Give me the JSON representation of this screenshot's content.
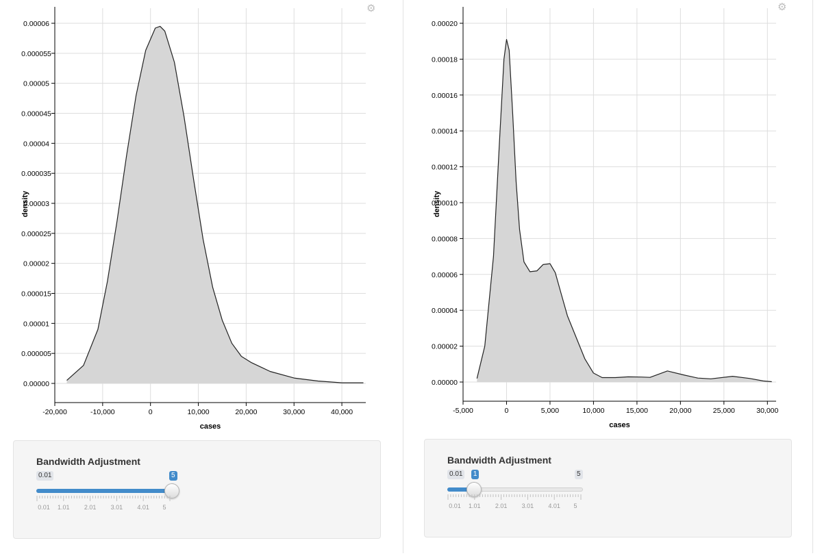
{
  "chart_data": [
    {
      "type": "area",
      "xlabel": "cases",
      "ylabel": "density",
      "xlim": [
        -20000,
        45000
      ],
      "ylim": [
        0,
        6e-05
      ],
      "x_ticks": [
        -20000,
        -10000,
        0,
        10000,
        20000,
        30000,
        40000
      ],
      "x_tick_labels": [
        "-20,000",
        "-10,000",
        "0",
        "10,000",
        "20,000",
        "30,000",
        "40,000"
      ],
      "y_ticks": [
        0,
        5e-06,
        1e-05,
        1.5e-05,
        2e-05,
        2.5e-05,
        3e-05,
        3.5e-05,
        4e-05,
        4.5e-05,
        5e-05,
        5.5e-05,
        6e-05
      ],
      "y_tick_labels": [
        "0.00000",
        "0.000005",
        "0.00001",
        "0.000015",
        "0.00002",
        "0.000025",
        "0.00003",
        "0.000035",
        "0.00004",
        "0.000045",
        "0.00005",
        "0.000055",
        "0.00006"
      ],
      "grid": true,
      "fill_color": "#d6d6d6",
      "line_color": "#222222",
      "x": [
        -17500,
        -14000,
        -11000,
        -9000,
        -7000,
        -5000,
        -3000,
        -1000,
        1000,
        2000,
        3000,
        5000,
        7000,
        9000,
        11000,
        13000,
        15000,
        17000,
        19000,
        21000,
        25000,
        30000,
        35000,
        40000,
        44500
      ],
      "y": [
        5e-07,
        3e-06,
        9e-06,
        1.7e-05,
        2.7e-05,
        3.8e-05,
        4.8e-05,
        5.55e-05,
        5.92e-05,
        5.95e-05,
        5.87e-05,
        5.35e-05,
        4.45e-05,
        3.4e-05,
        2.4e-05,
        1.6e-05,
        1.05e-05,
        6.7e-06,
        4.5e-06,
        3.5e-06,
        2e-06,
        9e-07,
        4e-07,
        1e-07,
        1e-07
      ]
    },
    {
      "type": "area",
      "xlabel": "cases",
      "ylabel": "density",
      "xlim": [
        -5000,
        31000
      ],
      "ylim": [
        0,
        0.0002
      ],
      "x_ticks": [
        -5000,
        0,
        5000,
        10000,
        15000,
        20000,
        25000,
        30000
      ],
      "x_tick_labels": [
        "-5,000",
        "0",
        "5,000",
        "10,000",
        "15,000",
        "20,000",
        "25,000",
        "30,000"
      ],
      "y_ticks": [
        0,
        2e-05,
        4e-05,
        6e-05,
        8e-05,
        0.0001,
        0.00012,
        0.00014,
        0.00016,
        0.00018,
        0.0002
      ],
      "y_tick_labels": [
        "0.00000",
        "0.00002",
        "0.00004",
        "0.00006",
        "0.00008",
        "0.00010",
        "0.00012",
        "0.00014",
        "0.00016",
        "0.00018",
        "0.00020"
      ],
      "grid": true,
      "fill_color": "#d6d6d6",
      "line_color": "#222222",
      "x": [
        -3400,
        -2500,
        -1500,
        -800,
        -300,
        0,
        300,
        700,
        1100,
        1500,
        2000,
        2700,
        3500,
        4200,
        5000,
        5600,
        6300,
        7000,
        8000,
        9000,
        10000,
        11000,
        12500,
        14000,
        15500,
        16500,
        18500,
        20500,
        22000,
        23500,
        26000,
        28000,
        29500,
        30500
      ],
      "y": [
        2e-06,
        2e-05,
        7e-05,
        0.000135,
        0.00018,
        0.000191,
        0.000185,
        0.00015,
        0.000112,
        8.5e-05,
        6.7e-05,
        6.15e-05,
        6.2e-05,
        6.55e-05,
        6.6e-05,
        6.1e-05,
        4.9e-05,
        3.7e-05,
        2.5e-05,
        1.3e-05,
        5e-06,
        2.5e-06,
        2.5e-06,
        2.9e-06,
        2.8e-06,
        2.6e-06,
        6.2e-06,
        3.8e-06,
        2.2e-06,
        1.8e-06,
        3.2e-06,
        2e-06,
        6e-07,
        2e-07
      ]
    }
  ],
  "controls": [
    {
      "label": "Bandwidth Adjustment",
      "min": 0.01,
      "max": 5,
      "value": 5,
      "min_label": "0.01",
      "max_label": "5",
      "value_label": "5",
      "grid_labels": [
        "0.01",
        "1.01",
        "2.01",
        "3.01",
        "4.01",
        "5"
      ]
    },
    {
      "label": "Bandwidth Adjustment",
      "min": 0.01,
      "max": 5,
      "value": 1,
      "min_label": "0.01",
      "max_label": "5",
      "value_label": "1",
      "grid_labels": [
        "0.01",
        "1.01",
        "2.01",
        "3.01",
        "4.01",
        "5"
      ]
    }
  ],
  "icons": {
    "settings": "gear-icon"
  },
  "colors": {
    "accent": "#428bca"
  }
}
